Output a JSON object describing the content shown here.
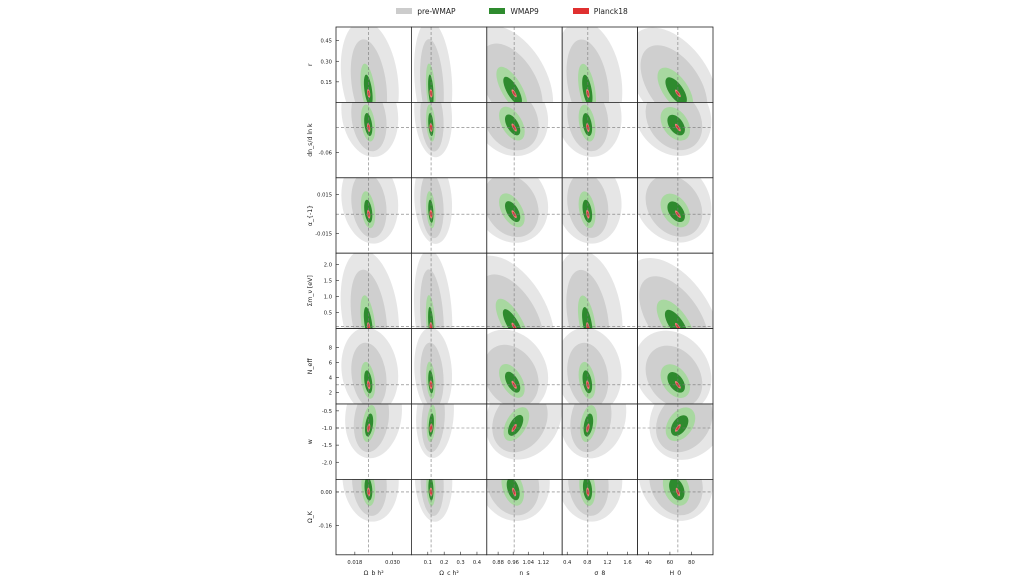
{
  "chart_data": {
    "type": "triangle-contours",
    "legend": [
      {
        "name": "pre-WMAP",
        "color": "#cccccc"
      },
      {
        "name": "WMAP9",
        "color": "#2e8b2e"
      },
      {
        "name": "Planck18",
        "color": "#e03030"
      }
    ],
    "columns": [
      {
        "label": "Ω_b h²",
        "range": [
          0.012,
          0.036
        ],
        "fiducial": 0.0224,
        "ticks": [
          0.018,
          0.03
        ],
        "tick_labels": [
          "0.018",
          "0.030"
        ]
      },
      {
        "label": "Ω_c h²",
        "range": [
          0.0,
          0.46
        ],
        "fiducial": 0.12,
        "ticks": [
          0.1,
          0.2,
          0.3,
          0.4
        ],
        "tick_labels": [
          "0.1",
          "0.2",
          "0.3",
          "0.4"
        ]
      },
      {
        "label": "n_s",
        "range": [
          0.82,
          1.22
        ],
        "fiducial": 0.965,
        "ticks": [
          0.88,
          0.96,
          1.04,
          1.12
        ],
        "tick_labels": [
          "0.88",
          "0.96",
          "1.04",
          "1.12"
        ]
      },
      {
        "label": "σ_8",
        "range": [
          0.3,
          1.8
        ],
        "fiducial": 0.81,
        "ticks": [
          0.4,
          0.8,
          1.2,
          1.6
        ],
        "tick_labels": [
          "0.4",
          "0.8",
          "1.2",
          "1.6"
        ]
      },
      {
        "label": "H_0",
        "range": [
          30,
          100
        ],
        "fiducial": 67.4,
        "ticks": [
          40,
          60,
          80
        ],
        "tick_labels": [
          "40",
          "60",
          "80"
        ]
      }
    ],
    "rows": [
      {
        "label": "r",
        "range": [
          0.0,
          0.55
        ],
        "fiducial": null,
        "ticks": [
          0.15,
          0.3,
          0.45
        ],
        "tick_labels": [
          "0.15",
          "0.30",
          "0.45"
        ]
      },
      {
        "label": "dn_s/d ln k",
        "range": [
          -0.12,
          0.06
        ],
        "fiducial": 0.0,
        "ticks": [
          -0.06
        ],
        "tick_labels": [
          "-0.06"
        ]
      },
      {
        "label": "α_{-1}",
        "range": [
          -0.03,
          0.028
        ],
        "fiducial": 0.0,
        "ticks": [
          -0.015,
          0.015
        ],
        "tick_labels": [
          "-0.015",
          "0.015"
        ]
      },
      {
        "label": "Σm_ν [eV]",
        "range": [
          0.0,
          2.35
        ],
        "fiducial": 0.06,
        "ticks": [
          0.5,
          1.0,
          1.5,
          2.0
        ],
        "tick_labels": [
          "0.5",
          "1.0",
          "1.5",
          "2.0"
        ]
      },
      {
        "label": "N_eff",
        "range": [
          0.5,
          10.5
        ],
        "fiducial": 3.046,
        "ticks": [
          2,
          4,
          6,
          8
        ],
        "tick_labels": [
          "2",
          "4",
          "6",
          "8"
        ]
      },
      {
        "label": "w",
        "range": [
          -2.5,
          -0.3
        ],
        "fiducial": -1.0,
        "ticks": [
          -2.0,
          -1.5,
          -1.0,
          -0.5
        ],
        "tick_labels": [
          "-2.0",
          "-1.5",
          "-1.0",
          "-0.5"
        ]
      },
      {
        "label": "Ω_K",
        "range": [
          -0.3,
          0.06
        ],
        "fiducial": 0.0,
        "ticks": [
          -0.16,
          0.0
        ],
        "tick_labels": [
          "-0.16",
          "0.00"
        ]
      }
    ],
    "grid": false,
    "legend_position": "top-center"
  }
}
